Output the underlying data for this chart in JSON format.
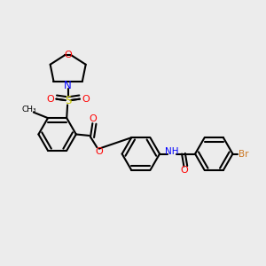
{
  "background_color": "#ececec",
  "atom_colors": {
    "O": "#ff0000",
    "N": "#0000ff",
    "S": "#cccc00",
    "Br": "#cc7722",
    "C": "#000000"
  },
  "bond_lw": 1.5,
  "ring_r": 0.072
}
